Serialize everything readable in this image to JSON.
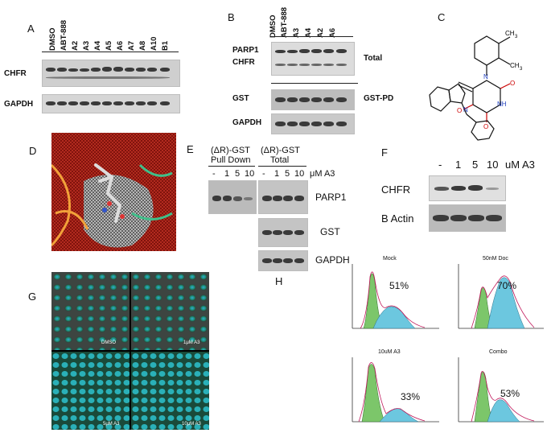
{
  "panels": {
    "A": {
      "label": "A",
      "lanes": [
        "DMSO",
        "ABT-888",
        "A2",
        "A3",
        "A4",
        "A5",
        "A6",
        "A7",
        "A8",
        "A10",
        "B1"
      ],
      "rows": [
        "CHFR",
        "GAPDH"
      ]
    },
    "B": {
      "label": "B",
      "lanes": [
        "DMSO",
        "ABT-888",
        "A3",
        "A4",
        "A2",
        "A6"
      ],
      "rows": [
        "PARP1",
        "CHFR",
        "GST",
        "GAPDH"
      ],
      "right_labels": [
        "Total",
        "GST-PD"
      ]
    },
    "C": {
      "label": "C"
    },
    "D": {
      "label": "D"
    },
    "E": {
      "label": "E",
      "group1": [
        "(ΔR)-GST",
        "Pull Down"
      ],
      "group2": [
        "(ΔR)-GST",
        "Total"
      ],
      "doses": [
        "-",
        "1",
        "5",
        "10"
      ],
      "unit": "μM A3",
      "rows": [
        "PARP1",
        "GST",
        "GAPDH"
      ]
    },
    "F": {
      "label": "F",
      "doses": [
        "-",
        "1",
        "5",
        "10"
      ],
      "unit": "uM A3",
      "rows": [
        "CHFR",
        "B Actin"
      ]
    },
    "G": {
      "label": "G",
      "tiles": [
        "DMSO",
        "1μM A3",
        "5μM A3",
        "10μM A3"
      ]
    },
    "H": {
      "label": "H",
      "histograms": [
        {
          "title": "Mock",
          "percent": "51%"
        },
        {
          "title": "50nM Doc",
          "percent": "70%"
        },
        {
          "title": "10uM A3",
          "percent": "33%"
        },
        {
          "title": "Combo",
          "percent": "53%"
        }
      ]
    }
  }
}
